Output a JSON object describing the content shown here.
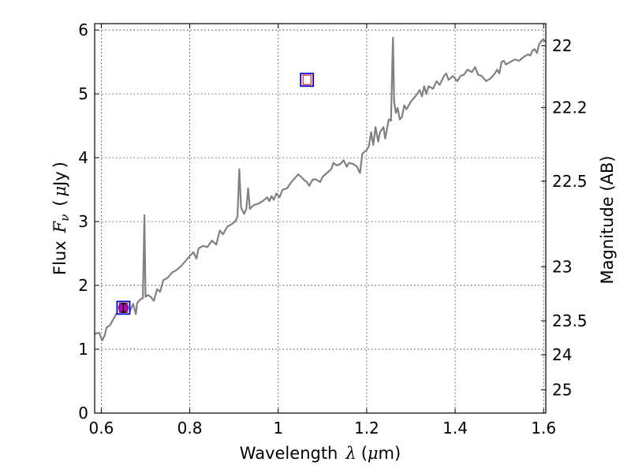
{
  "chart_data": {
    "type": "line",
    "title": "",
    "xlabel": {
      "prefix": "Wavelength",
      "symbol": "λ",
      "unit_open": "(",
      "unit_mu": "μ",
      "unit_rest": "m)"
    },
    "ylabel": {
      "prefix": "Flux",
      "symbol": "F",
      "symbol_sub": "ν",
      "unit_open": "(",
      "unit_mu": "μ",
      "unit_rest": "Jy",
      "unit_close": ")"
    },
    "y2label": "Magnitude (AB)",
    "xlim": [
      0.585,
      1.605
    ],
    "ylim": [
      0,
      6.1
    ],
    "grid": true,
    "xticks": [
      {
        "value": 0.6,
        "label": "0.6"
      },
      {
        "value": 0.8,
        "label": "0.8"
      },
      {
        "value": 1.0,
        "label": "1"
      },
      {
        "value": 1.2,
        "label": "1.2"
      },
      {
        "value": 1.4,
        "label": "1.4"
      },
      {
        "value": 1.6,
        "label": "1.6"
      }
    ],
    "yticks": [
      {
        "value": 0,
        "label": "0"
      },
      {
        "value": 1,
        "label": "1"
      },
      {
        "value": 2,
        "label": "2"
      },
      {
        "value": 3,
        "label": "3"
      },
      {
        "value": 4,
        "label": "4"
      },
      {
        "value": 5,
        "label": "5"
      },
      {
        "value": 6,
        "label": "6"
      }
    ],
    "y2ticks": [
      {
        "mag": 22,
        "label": "22"
      },
      {
        "mag": 22.2,
        "label": "22.2"
      },
      {
        "mag": 22.5,
        "label": "22.5"
      },
      {
        "mag": 23,
        "label": "23"
      },
      {
        "mag": 23.5,
        "label": "23.5"
      },
      {
        "mag": 24,
        "label": "24"
      },
      {
        "mag": 25,
        "label": "25"
      }
    ],
    "series": [
      {
        "name": "spectrum",
        "color": "#808080",
        "points": [
          [
            0.585,
            1.24
          ],
          [
            0.595,
            1.26
          ],
          [
            0.602,
            1.14
          ],
          [
            0.608,
            1.22
          ],
          [
            0.612,
            1.34
          ],
          [
            0.62,
            1.38
          ],
          [
            0.628,
            1.48
          ],
          [
            0.638,
            1.6
          ],
          [
            0.643,
            1.55
          ],
          [
            0.65,
            1.62
          ],
          [
            0.66,
            1.69
          ],
          [
            0.665,
            1.6
          ],
          [
            0.672,
            1.71
          ],
          [
            0.678,
            1.55
          ],
          [
            0.681,
            1.72
          ],
          [
            0.688,
            1.78
          ],
          [
            0.694,
            1.8
          ],
          [
            0.6975,
            3.1
          ],
          [
            0.7,
            1.82
          ],
          [
            0.705,
            1.85
          ],
          [
            0.712,
            1.82
          ],
          [
            0.719,
            1.76
          ],
          [
            0.726,
            1.94
          ],
          [
            0.733,
            1.9
          ],
          [
            0.74,
            2.08
          ],
          [
            0.75,
            2.12
          ],
          [
            0.76,
            2.2
          ],
          [
            0.77,
            2.24
          ],
          [
            0.78,
            2.3
          ],
          [
            0.79,
            2.38
          ],
          [
            0.8,
            2.46
          ],
          [
            0.808,
            2.52
          ],
          [
            0.815,
            2.42
          ],
          [
            0.82,
            2.58
          ],
          [
            0.83,
            2.62
          ],
          [
            0.84,
            2.6
          ],
          [
            0.85,
            2.7
          ],
          [
            0.86,
            2.64
          ],
          [
            0.868,
            2.86
          ],
          [
            0.875,
            2.8
          ],
          [
            0.885,
            2.92
          ],
          [
            0.895,
            2.96
          ],
          [
            0.903,
            3.0
          ],
          [
            0.908,
            3.08
          ],
          [
            0.912,
            3.82
          ],
          [
            0.916,
            3.22
          ],
          [
            0.923,
            3.12
          ],
          [
            0.928,
            3.2
          ],
          [
            0.932,
            3.52
          ],
          [
            0.936,
            3.2
          ],
          [
            0.945,
            3.26
          ],
          [
            0.955,
            3.28
          ],
          [
            0.965,
            3.32
          ],
          [
            0.975,
            3.38
          ],
          [
            0.98,
            3.32
          ],
          [
            0.985,
            3.4
          ],
          [
            0.99,
            3.34
          ],
          [
            0.996,
            3.44
          ],
          [
            1.003,
            3.38
          ],
          [
            1.01,
            3.5
          ],
          [
            1.02,
            3.52
          ],
          [
            1.03,
            3.62
          ],
          [
            1.04,
            3.7
          ],
          [
            1.045,
            3.74
          ],
          [
            1.052,
            3.7
          ],
          [
            1.06,
            3.64
          ],
          [
            1.065,
            3.62
          ],
          [
            1.07,
            3.56
          ],
          [
            1.078,
            3.66
          ],
          [
            1.085,
            3.66
          ],
          [
            1.095,
            3.62
          ],
          [
            1.1,
            3.7
          ],
          [
            1.11,
            3.76
          ],
          [
            1.12,
            3.82
          ],
          [
            1.125,
            3.92
          ],
          [
            1.132,
            3.88
          ],
          [
            1.14,
            3.9
          ],
          [
            1.148,
            3.96
          ],
          [
            1.155,
            3.86
          ],
          [
            1.16,
            3.92
          ],
          [
            1.17,
            3.9
          ],
          [
            1.178,
            3.86
          ],
          [
            1.185,
            3.76
          ],
          [
            1.19,
            4.06
          ],
          [
            1.196,
            4.1
          ],
          [
            1.2,
            4.12
          ],
          [
            1.205,
            4.18
          ],
          [
            1.21,
            4.4
          ],
          [
            1.215,
            4.2
          ],
          [
            1.22,
            4.48
          ],
          [
            1.226,
            4.25
          ],
          [
            1.23,
            4.4
          ],
          [
            1.238,
            4.48
          ],
          [
            1.242,
            4.3
          ],
          [
            1.25,
            4.6
          ],
          [
            1.255,
            4.58
          ],
          [
            1.2595,
            5.88
          ],
          [
            1.262,
            4.88
          ],
          [
            1.266,
            4.7
          ],
          [
            1.27,
            4.78
          ],
          [
            1.275,
            4.6
          ],
          [
            1.28,
            4.64
          ],
          [
            1.285,
            4.82
          ],
          [
            1.29,
            4.76
          ],
          [
            1.3,
            4.88
          ],
          [
            1.31,
            4.96
          ],
          [
            1.32,
            5.06
          ],
          [
            1.325,
            4.96
          ],
          [
            1.33,
            5.12
          ],
          [
            1.335,
            5.0
          ],
          [
            1.34,
            5.12
          ],
          [
            1.35,
            5.08
          ],
          [
            1.358,
            5.2
          ],
          [
            1.365,
            5.14
          ],
          [
            1.375,
            5.28
          ],
          [
            1.38,
            5.32
          ],
          [
            1.385,
            5.22
          ],
          [
            1.395,
            5.28
          ],
          [
            1.405,
            5.2
          ],
          [
            1.412,
            5.28
          ],
          [
            1.42,
            5.3
          ],
          [
            1.428,
            5.38
          ],
          [
            1.438,
            5.34
          ],
          [
            1.445,
            5.42
          ],
          [
            1.452,
            5.3
          ],
          [
            1.46,
            5.28
          ],
          [
            1.47,
            5.2
          ],
          [
            1.48,
            5.24
          ],
          [
            1.49,
            5.32
          ],
          [
            1.495,
            5.38
          ],
          [
            1.5,
            5.32
          ],
          [
            1.505,
            5.5
          ],
          [
            1.51,
            5.52
          ],
          [
            1.515,
            5.46
          ],
          [
            1.525,
            5.5
          ],
          [
            1.535,
            5.54
          ],
          [
            1.545,
            5.52
          ],
          [
            1.555,
            5.58
          ],
          [
            1.565,
            5.62
          ],
          [
            1.57,
            5.6
          ],
          [
            1.575,
            5.68
          ],
          [
            1.58,
            5.7
          ],
          [
            1.585,
            5.64
          ],
          [
            1.59,
            5.78
          ],
          [
            1.598,
            5.85
          ],
          [
            1.605,
            5.82
          ]
        ]
      }
    ],
    "markers": [
      {
        "name": "filter-box-low",
        "x": 0.65,
        "y": 1.65,
        "shape": "square",
        "edge": "#0000cc",
        "inner_edge": "#cc0000"
      },
      {
        "name": "filter-box-high",
        "x": 1.065,
        "y": 5.22,
        "shape": "square",
        "edge": "#0000cc",
        "inner_edge": "#cc0000"
      },
      {
        "name": "photometry-point",
        "x": 0.65,
        "y": 1.65,
        "shape": "circle",
        "fill": "#bb00bb",
        "yerr": 0.07
      }
    ],
    "colors": {
      "spectrum": "#808080",
      "grid": "#000000",
      "box_outer": "#0000cc",
      "box_inner": "#cc0000",
      "point": "#bb00bb"
    }
  }
}
